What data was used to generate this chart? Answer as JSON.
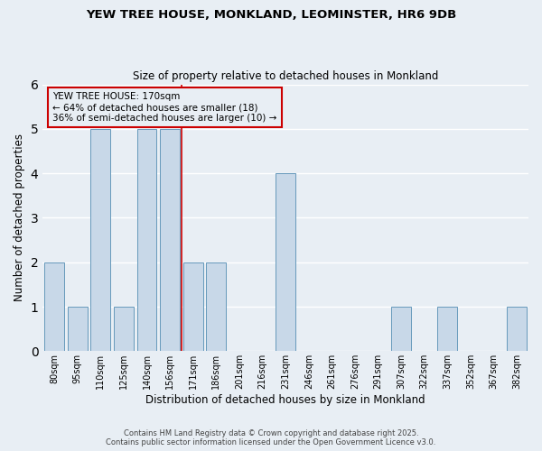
{
  "title_line1": "YEW TREE HOUSE, MONKLAND, LEOMINSTER, HR6 9DB",
  "title_line2": "Size of property relative to detached houses in Monkland",
  "xlabel": "Distribution of detached houses by size in Monkland",
  "ylabel": "Number of detached properties",
  "footer_line1": "Contains HM Land Registry data © Crown copyright and database right 2025.",
  "footer_line2": "Contains public sector information licensed under the Open Government Licence v3.0.",
  "annotation_title": "YEW TREE HOUSE: 170sqm",
  "annotation_line1": "← 64% of detached houses are smaller (18)",
  "annotation_line2": "36% of semi-detached houses are larger (10) →",
  "categories": [
    "80sqm",
    "95sqm",
    "110sqm",
    "125sqm",
    "140sqm",
    "156sqm",
    "171sqm",
    "186sqm",
    "201sqm",
    "216sqm",
    "231sqm",
    "246sqm",
    "261sqm",
    "276sqm",
    "291sqm",
    "307sqm",
    "322sqm",
    "337sqm",
    "352sqm",
    "367sqm",
    "382sqm"
  ],
  "values": [
    2,
    1,
    5,
    1,
    5,
    5,
    2,
    2,
    0,
    0,
    4,
    0,
    0,
    0,
    0,
    1,
    0,
    1,
    0,
    0,
    1
  ],
  "bar_color": "#c8d8e8",
  "bar_edge_color": "#6699bb",
  "vline_color": "#cc0000",
  "vline_x_index": 5,
  "annotation_box_color": "#cc0000",
  "background_color": "#e8eef4",
  "grid_color": "#ffffff",
  "ylim": [
    0,
    6
  ],
  "yticks": [
    0,
    1,
    2,
    3,
    4,
    5,
    6
  ]
}
